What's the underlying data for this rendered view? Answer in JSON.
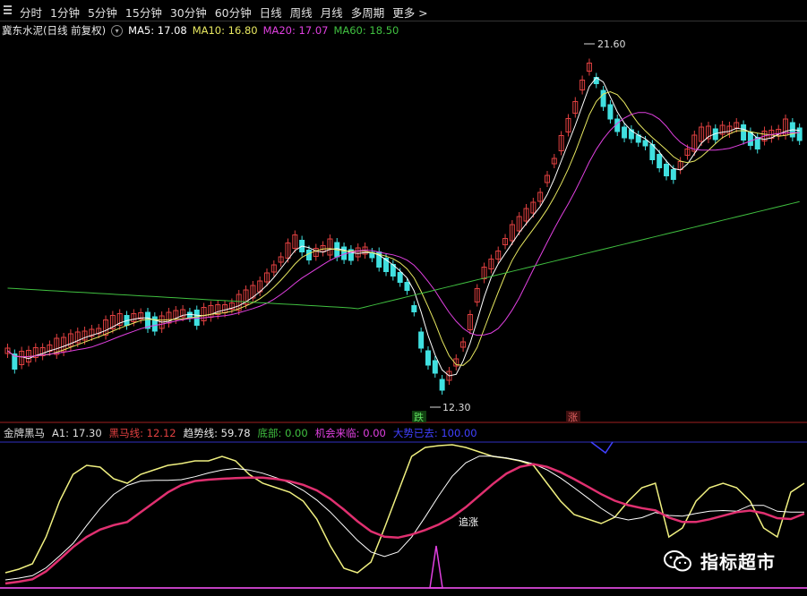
{
  "toolbar": {
    "tabs": [
      {
        "label": "分时"
      },
      {
        "label": "1分钟"
      },
      {
        "label": "5分钟"
      },
      {
        "label": "15分钟"
      },
      {
        "label": "30分钟"
      },
      {
        "label": "60分钟"
      },
      {
        "label": "日线"
      },
      {
        "label": "周线"
      },
      {
        "label": "月线"
      },
      {
        "label": "多周期"
      },
      {
        "label": "更多 >"
      }
    ]
  },
  "main_chart": {
    "title": "冀东水泥(日线 前复权)",
    "ma5": "MA5: 17.08",
    "ma10": "MA10: 16.80",
    "ma20": "MA20: 17.07",
    "ma60": "MA60: 18.50",
    "high_label": "21.60",
    "low_label": "12.30",
    "signal_down": "跌",
    "signal_up": "涨",
    "colors": {
      "ma5": "#ffffff",
      "ma10": "#e8e860",
      "ma20": "#e040e0",
      "ma60": "#40c040",
      "up": "#e04040",
      "down": "#40e0e0"
    }
  },
  "indicator": {
    "name": "金牌黑马",
    "a1": "A1: 17.30",
    "heima": "黑马线: 12.12",
    "trend": "趋势线: 59.78",
    "bottom": "底部: 0.00",
    "chance": "机会来临: 0.00",
    "trend_gone": "大势已去: 100.00",
    "annotation": "追涨"
  },
  "watermark": {
    "text": "指标超市",
    "icon": "wechat-icon"
  }
}
